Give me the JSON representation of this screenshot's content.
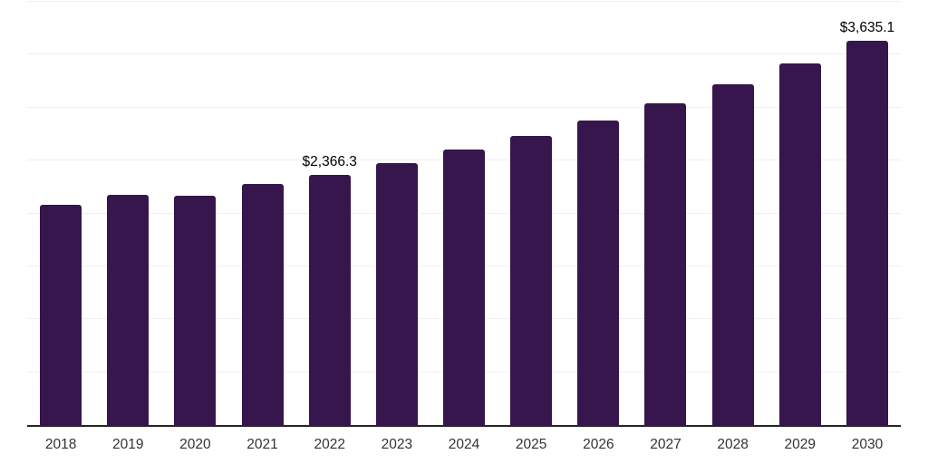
{
  "chart_data": {
    "type": "bar",
    "title": "",
    "xlabel": "",
    "ylabel": "",
    "categories": [
      "2018",
      "2019",
      "2020",
      "2021",
      "2022",
      "2023",
      "2024",
      "2025",
      "2026",
      "2027",
      "2028",
      "2029",
      "2030"
    ],
    "values": [
      2085,
      2175,
      2165,
      2275,
      2366.3,
      2475,
      2600,
      2730,
      2880,
      3045,
      3220,
      3420,
      3635.1
    ],
    "data_labels": {
      "2022": "$2,366.3",
      "2030": "$3,635.1"
    },
    "ylim": [
      0,
      4000
    ],
    "gridline_step": 500,
    "grid": "horizontal-light",
    "legend": "none",
    "y_axis_tick_labels": "none",
    "colors": {
      "bar": "#37154D",
      "axis": "#262626",
      "gridline": "#EFEFEF",
      "tick_label": "#333333",
      "data_label": "#000000",
      "background": "#FFFFFF"
    }
  }
}
